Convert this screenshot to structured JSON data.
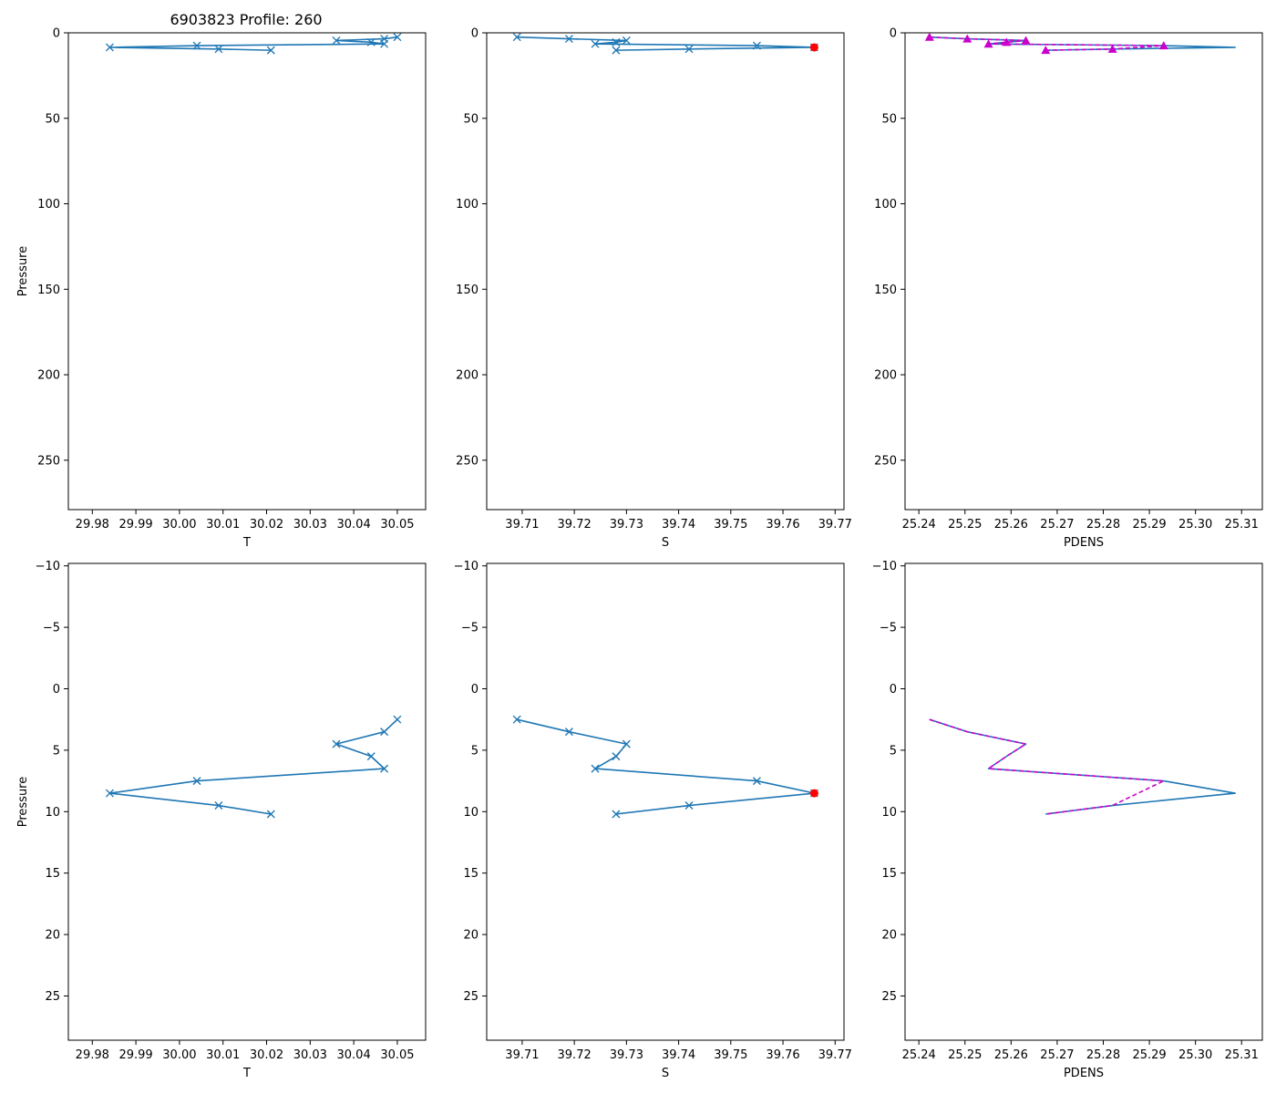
{
  "title": "6903823 Profile: 260",
  "colors": {
    "line": "#1f77b4",
    "density": "#cc00cc",
    "flag": "#ff0000",
    "axis": "#000000"
  },
  "chart_data": [
    {
      "type": "line",
      "name": "temperature-full",
      "xlabel": "T",
      "ylabel": "Pressure",
      "xlim": [
        29.9745,
        30.0565
      ],
      "ylim": [
        278.9,
        0
      ],
      "inverted_y": true,
      "xticks": [
        "29.98",
        "29.99",
        "30.00",
        "30.01",
        "30.02",
        "30.03",
        "30.04",
        "30.05"
      ],
      "xtick_values": [
        29.98,
        29.99,
        30.0,
        30.01,
        30.02,
        30.03,
        30.04,
        30.05
      ],
      "yticks": [
        "0",
        "50",
        "100",
        "150",
        "200",
        "250"
      ],
      "ytick_values": [
        0,
        50,
        100,
        150,
        200,
        250
      ],
      "series": [
        {
          "name": "T",
          "marker": "x",
          "style": "solid",
          "x": [
            30.05,
            30.047,
            30.036,
            30.044,
            30.047,
            30.004,
            29.984,
            30.009,
            30.021
          ],
          "y": [
            2.5,
            3.5,
            4.5,
            5.5,
            6.5,
            7.5,
            8.5,
            9.5,
            10.2
          ]
        }
      ]
    },
    {
      "type": "line",
      "name": "salinity-full",
      "xlabel": "S",
      "ylabel": "",
      "xlim": [
        39.7032,
        39.7717
      ],
      "ylim": [
        278.9,
        0
      ],
      "inverted_y": true,
      "xticks": [
        "39.71",
        "39.72",
        "39.73",
        "39.74",
        "39.75",
        "39.76",
        "39.77"
      ],
      "xtick_values": [
        39.71,
        39.72,
        39.73,
        39.74,
        39.75,
        39.76,
        39.77
      ],
      "yticks": [
        "0",
        "50",
        "100",
        "150",
        "200",
        "250"
      ],
      "ytick_values": [
        0,
        50,
        100,
        150,
        200,
        250
      ],
      "series": [
        {
          "name": "S",
          "marker": "x",
          "style": "solid",
          "x": [
            39.709,
            39.719,
            39.73,
            39.728,
            39.724,
            39.755,
            39.766,
            39.742,
            39.728
          ],
          "y": [
            2.5,
            3.5,
            4.5,
            5.5,
            6.5,
            7.5,
            8.5,
            9.5,
            10.2
          ]
        },
        {
          "name": "flagged",
          "marker": "dot",
          "style": "none",
          "x": [
            39.766
          ],
          "y": [
            8.5
          ]
        }
      ]
    },
    {
      "type": "line",
      "name": "density-full",
      "xlabel": "PDENS",
      "ylabel": "",
      "xlim": [
        25.237,
        25.3145
      ],
      "ylim": [
        278.9,
        0
      ],
      "inverted_y": true,
      "xticks": [
        "25.24",
        "25.25",
        "25.26",
        "25.27",
        "25.28",
        "25.29",
        "25.30",
        "25.31"
      ],
      "xtick_values": [
        25.24,
        25.25,
        25.26,
        25.27,
        25.28,
        25.29,
        25.3,
        25.31
      ],
      "yticks": [
        "0",
        "50",
        "100",
        "150",
        "200",
        "250"
      ],
      "ytick_values": [
        0,
        50,
        100,
        150,
        200,
        250
      ],
      "series": [
        {
          "name": "PDENS",
          "marker": "none",
          "style": "solid",
          "x": [
            25.2423,
            25.2505,
            25.2632,
            25.259,
            25.2551,
            25.2931,
            25.3086,
            25.282,
            25.2675
          ],
          "y": [
            2.5,
            3.5,
            4.5,
            5.5,
            6.5,
            7.5,
            8.5,
            9.5,
            10.2
          ]
        },
        {
          "name": "PDENS-check",
          "marker": "triangle",
          "style": "dashed",
          "x": [
            25.2423,
            25.2505,
            25.2632,
            25.259,
            25.2551,
            25.2931,
            25.282,
            25.2675
          ],
          "y": [
            2.5,
            3.5,
            4.5,
            5.5,
            6.5,
            7.5,
            9.5,
            10.2
          ]
        }
      ]
    },
    {
      "type": "line",
      "name": "temperature-zoom",
      "xlabel": "T",
      "ylabel": "Pressure",
      "xlim": [
        29.9745,
        30.0565
      ],
      "ylim": [
        28.6,
        -10.2
      ],
      "inverted_y": true,
      "xticks": [
        "29.98",
        "29.99",
        "30.00",
        "30.01",
        "30.02",
        "30.03",
        "30.04",
        "30.05"
      ],
      "xtick_values": [
        29.98,
        29.99,
        30.0,
        30.01,
        30.02,
        30.03,
        30.04,
        30.05
      ],
      "yticks": [
        "−10",
        "−5",
        "0",
        "5",
        "10",
        "15",
        "20",
        "25"
      ],
      "ytick_values": [
        -10,
        -5,
        0,
        5,
        10,
        15,
        20,
        25
      ],
      "series": [
        {
          "name": "T",
          "marker": "x",
          "style": "solid",
          "x": [
            30.05,
            30.047,
            30.036,
            30.044,
            30.047,
            30.004,
            29.984,
            30.009,
            30.021
          ],
          "y": [
            2.5,
            3.5,
            4.5,
            5.5,
            6.5,
            7.5,
            8.5,
            9.5,
            10.2
          ]
        }
      ]
    },
    {
      "type": "line",
      "name": "salinity-zoom",
      "xlabel": "S",
      "ylabel": "",
      "xlim": [
        39.7032,
        39.7717
      ],
      "ylim": [
        28.6,
        -10.2
      ],
      "inverted_y": true,
      "xticks": [
        "39.71",
        "39.72",
        "39.73",
        "39.74",
        "39.75",
        "39.76",
        "39.77"
      ],
      "xtick_values": [
        39.71,
        39.72,
        39.73,
        39.74,
        39.75,
        39.76,
        39.77
      ],
      "yticks": [
        "−10",
        "−5",
        "0",
        "5",
        "10",
        "15",
        "20",
        "25"
      ],
      "ytick_values": [
        -10,
        -5,
        0,
        5,
        10,
        15,
        20,
        25
      ],
      "series": [
        {
          "name": "S",
          "marker": "x",
          "style": "solid",
          "x": [
            39.709,
            39.719,
            39.73,
            39.728,
            39.724,
            39.755,
            39.766,
            39.742,
            39.728
          ],
          "y": [
            2.5,
            3.5,
            4.5,
            5.5,
            6.5,
            7.5,
            8.5,
            9.5,
            10.2
          ]
        },
        {
          "name": "flagged",
          "marker": "dot",
          "style": "none",
          "x": [
            39.766
          ],
          "y": [
            8.5
          ]
        }
      ]
    },
    {
      "type": "line",
      "name": "density-zoom",
      "xlabel": "PDENS",
      "ylabel": "",
      "xlim": [
        25.237,
        25.3145
      ],
      "ylim": [
        28.6,
        -10.2
      ],
      "inverted_y": true,
      "xticks": [
        "25.24",
        "25.25",
        "25.26",
        "25.27",
        "25.28",
        "25.29",
        "25.30",
        "25.31"
      ],
      "xtick_values": [
        25.24,
        25.25,
        25.26,
        25.27,
        25.28,
        25.29,
        25.3,
        25.31
      ],
      "yticks": [
        "−10",
        "−5",
        "0",
        "5",
        "10",
        "15",
        "20",
        "25"
      ],
      "ytick_values": [
        -10,
        -5,
        0,
        5,
        10,
        15,
        20,
        25
      ],
      "series": [
        {
          "name": "PDENS",
          "marker": "none",
          "style": "solid",
          "x": [
            25.2423,
            25.2505,
            25.2632,
            25.259,
            25.2551,
            25.2931,
            25.3086,
            25.282,
            25.2675
          ],
          "y": [
            2.5,
            3.5,
            4.5,
            5.5,
            6.5,
            7.5,
            8.5,
            9.5,
            10.2
          ]
        },
        {
          "name": "PDENS-check",
          "marker": "none",
          "style": "dashed",
          "x": [
            25.2423,
            25.2505,
            25.2632,
            25.259,
            25.2551,
            25.2931,
            25.282,
            25.2675
          ],
          "y": [
            2.5,
            3.5,
            4.5,
            5.5,
            6.5,
            7.5,
            9.5,
            10.2
          ]
        }
      ]
    }
  ]
}
